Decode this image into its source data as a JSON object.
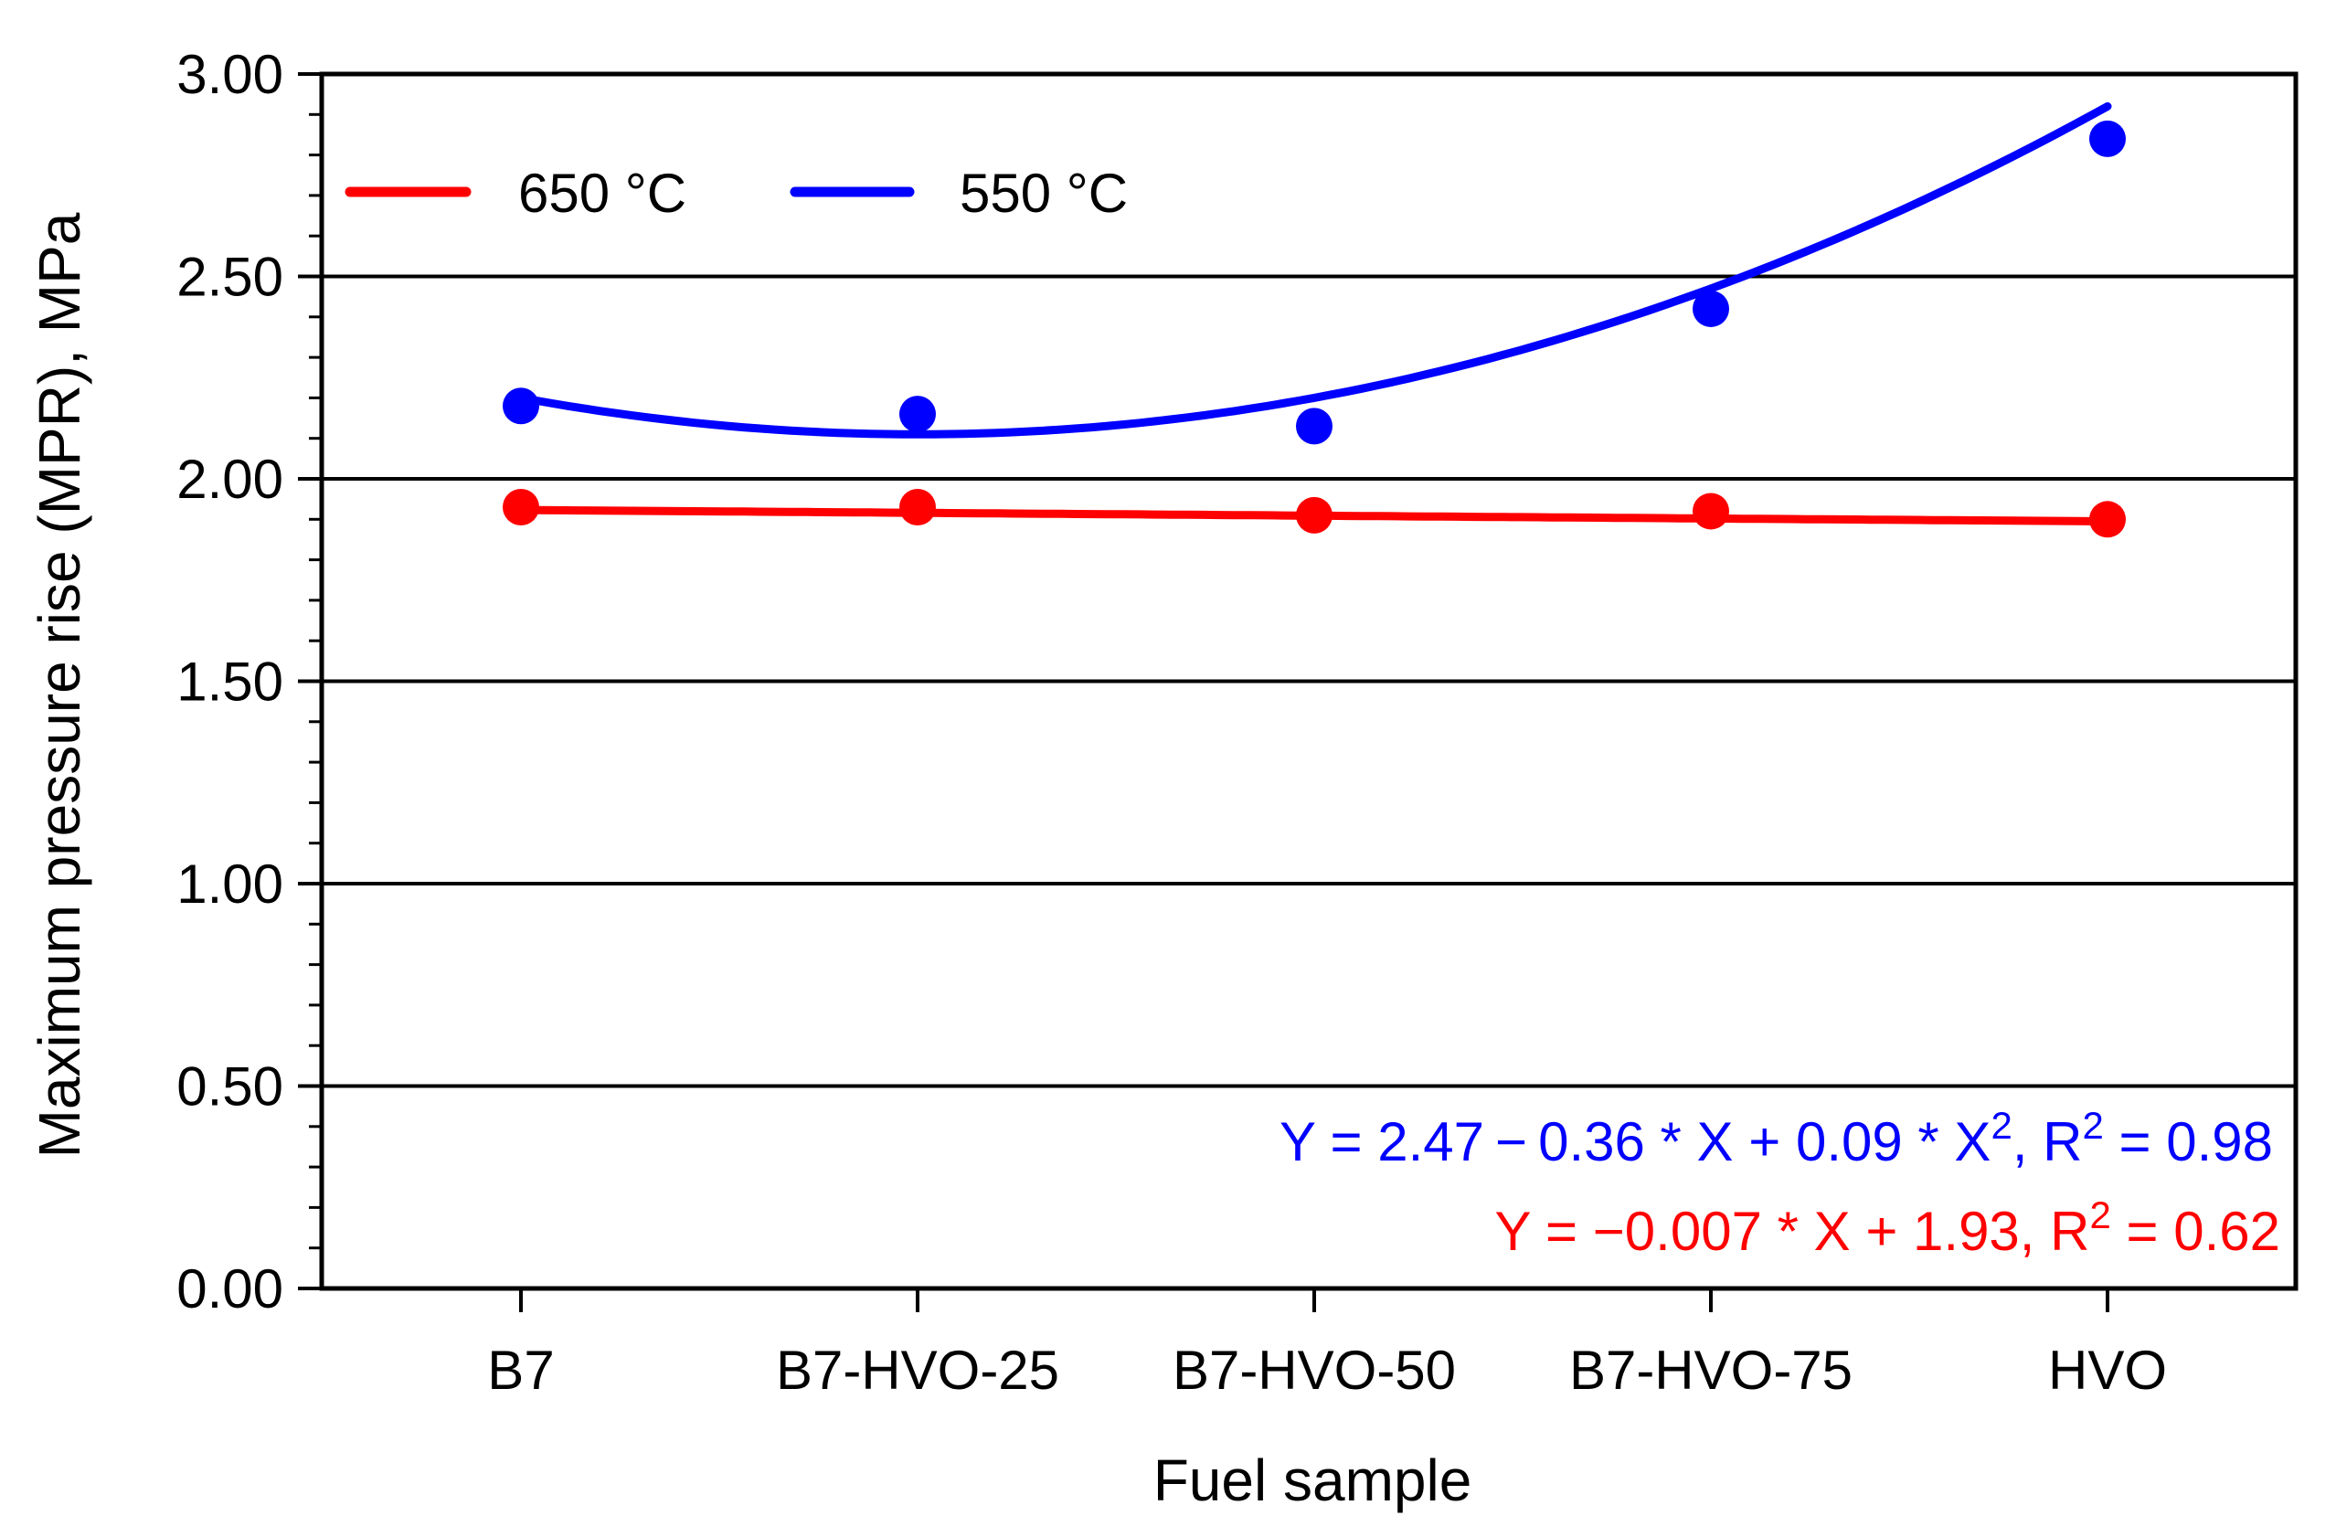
{
  "chart_data": {
    "type": "line",
    "title": "",
    "xlabel": "Fuel sample",
    "ylabel": "Maximum pressure rise  (MPR), MPa",
    "categories": [
      "B7",
      "B7-HVO-25",
      "B7-HVO-50",
      "B7-HVO-75",
      "HVO"
    ],
    "ylim": [
      0,
      3
    ],
    "y_ticks": [
      "0.00",
      "0.50",
      "1.00",
      "1.50",
      "2.00",
      "2.50",
      "3.00"
    ],
    "y_tick_values": [
      0,
      0.5,
      1,
      1.5,
      2,
      2.5,
      3
    ],
    "y_minor_step": 0.1,
    "grid": true,
    "legend_position": "top-left",
    "series": [
      {
        "name": "650 °C",
        "color": "#ff0000",
        "values": [
          1.93,
          1.93,
          1.91,
          1.92,
          1.9
        ],
        "fit": {
          "type": "linear",
          "coeffs": [
            1.93,
            -0.007
          ]
        },
        "equation": {
          "prefix": "Y = −0.007 * X + 1.93, R",
          "sup1": "2",
          "tail": " = 0.62"
        }
      },
      {
        "name": "550 °C",
        "color": "#0000ff",
        "values": [
          2.18,
          2.16,
          2.13,
          2.42,
          2.84
        ],
        "fit": {
          "type": "quadratic",
          "coeffs": [
            2.47,
            -0.36,
            0.09
          ]
        },
        "equation": {
          "prefix": "Y = 2.47 − 0.36 * X + 0.09 * X",
          "sup1": "2",
          "mid": ", R",
          "sup2": "2",
          "tail": " = 0.98"
        }
      }
    ]
  }
}
